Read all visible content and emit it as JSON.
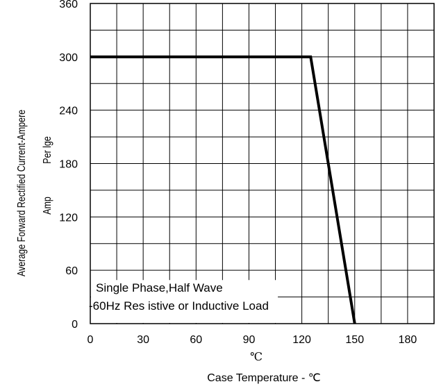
{
  "chart_data": {
    "type": "line",
    "title": "",
    "xlabel": "Case  Temperature - ℃",
    "x_unit_label": "℃",
    "ylabel": "Average Forward Rectified Current-Ampere",
    "ylabel_secondary": [
      "Per lge",
      "Amp"
    ],
    "xlim": [
      0,
      195
    ],
    "ylim": [
      0,
      360
    ],
    "x_ticks": [
      "0",
      "30",
      "60",
      "90",
      "120",
      "150",
      "180"
    ],
    "y_ticks": [
      "0",
      "60",
      "120",
      "180",
      "240",
      "300",
      "360"
    ],
    "x_tick_values": [
      0,
      30,
      60,
      90,
      120,
      150,
      180
    ],
    "y_tick_values": [
      0,
      60,
      120,
      180,
      240,
      300,
      360
    ],
    "grid": true,
    "grid_x_step": 15,
    "grid_y_step": 30,
    "series": [
      {
        "x": [
          0,
          125,
          150
        ],
        "y": [
          300,
          300,
          0
        ]
      }
    ],
    "annotation_lines": [
      "Single  Phase,Half  Wave",
      "-60Hz  Res  istive or Inductive Load"
    ]
  },
  "colors": {
    "line": "#000000",
    "grid": "#000000",
    "background": "#ffffff"
  }
}
